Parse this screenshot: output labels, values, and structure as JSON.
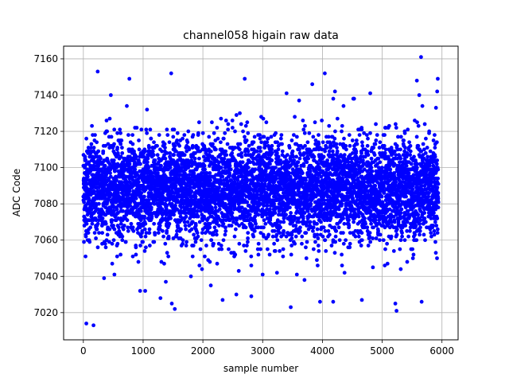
{
  "chart_data": {
    "type": "scatter",
    "title": "channel058 higain raw data",
    "xlabel": "sample number",
    "ylabel": "ADC Code",
    "xlim": [
      -330,
      6270
    ],
    "ylim": [
      7005,
      7167
    ],
    "xticks": [
      0,
      1000,
      2000,
      3000,
      4000,
      5000,
      6000
    ],
    "yticks": [
      7020,
      7040,
      7060,
      7080,
      7100,
      7120,
      7140,
      7160
    ],
    "grid": true,
    "marker_color": "#0000ff",
    "series": [
      {
        "n_samples": 6000,
        "x_range": [
          0,
          5940
        ],
        "mean": 7088,
        "std": 14,
        "points": [
          [
            50,
            7014
          ],
          [
            170,
            7013
          ],
          [
            240,
            7153
          ],
          [
            460,
            7140
          ],
          [
            770,
            7149
          ],
          [
            1470,
            7152
          ],
          [
            1530,
            7022
          ],
          [
            1290,
            7028
          ],
          [
            1380,
            7037
          ],
          [
            1480,
            7025
          ],
          [
            950,
            7032
          ],
          [
            2330,
            7027
          ],
          [
            2560,
            7030
          ],
          [
            2700,
            7149
          ],
          [
            2810,
            7029
          ],
          [
            3400,
            7141
          ],
          [
            3470,
            7023
          ],
          [
            3610,
            7137
          ],
          [
            3830,
            7146
          ],
          [
            3960,
            7026
          ],
          [
            4040,
            7152
          ],
          [
            4180,
            7026
          ],
          [
            4210,
            7142
          ],
          [
            4530,
            7138
          ],
          [
            4660,
            7027
          ],
          [
            4800,
            7141
          ],
          [
            5220,
            7025
          ],
          [
            5240,
            7021
          ],
          [
            5580,
            7148
          ],
          [
            5650,
            7161
          ],
          [
            5660,
            7026
          ],
          [
            5920,
            7142
          ],
          [
            5930,
            7149
          ],
          [
            5900,
            7133
          ],
          [
            5620,
            7140
          ],
          [
            3700,
            7038
          ],
          [
            3000,
            7041
          ],
          [
            2600,
            7043
          ],
          [
            4370,
            7042
          ],
          [
            1800,
            7040
          ]
        ]
      }
    ]
  }
}
